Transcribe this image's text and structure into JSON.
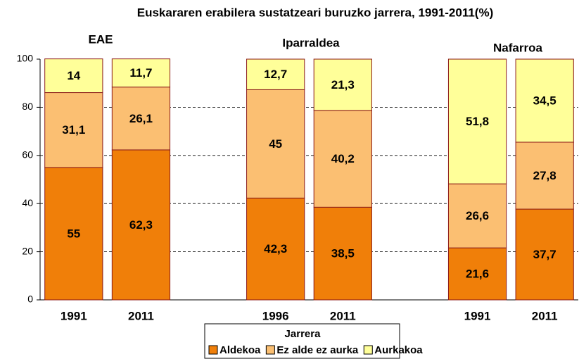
{
  "chart_data": {
    "type": "stacked_bar",
    "title": "Euskararen erabilera sustatzeari buruzko jarrera, 1991-2011(%)",
    "annotations": [
      "EAE",
      "Iparraldea",
      "Nafarroa"
    ],
    "categories": [
      "1991",
      "2011",
      null,
      "1996",
      "2011",
      null,
      "1991",
      "2011"
    ],
    "series": [
      {
        "name": "Aldekoa",
        "color": "#f07f09",
        "values": [
          55,
          62.3,
          null,
          42.3,
          38.5,
          null,
          21.6,
          37.7
        ],
        "value_labels": [
          "55",
          "62,3",
          null,
          "42,3",
          "38,5",
          null,
          "21,6",
          "37,7"
        ]
      },
      {
        "name": "Ez alde ez aurka",
        "color": "#fbbf72",
        "values": [
          31.1,
          26.1,
          null,
          45,
          40.2,
          null,
          26.6,
          27.8
        ],
        "value_labels": [
          "31,1",
          "26,1",
          null,
          "45",
          "40,2",
          null,
          "26,6",
          "27,8"
        ]
      },
      {
        "name": "Aurkakoa",
        "color": "#ffff99",
        "values": [
          14,
          11.7,
          null,
          12.7,
          21.3,
          null,
          51.8,
          34.5
        ],
        "value_labels": [
          "14",
          "11,7",
          null,
          "12,7",
          "21,3",
          null,
          "51,8",
          "34,5"
        ]
      }
    ],
    "ylim": [
      0,
      100
    ],
    "yticks": [
      0,
      20,
      40,
      60,
      80,
      100
    ],
    "grid": true,
    "legend_title": "Jarrera",
    "legend_position": "bottom"
  }
}
